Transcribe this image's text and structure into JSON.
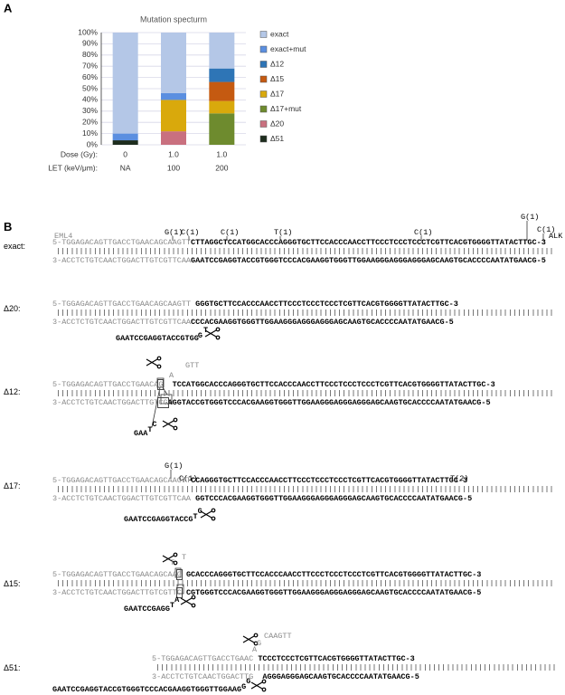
{
  "chart_data": {
    "type": "stacked_bar",
    "panel_label": "A",
    "title": "Mutation specturm",
    "categories": [
      "0",
      "1.0",
      "1.0"
    ],
    "category_label": "Dose (Gy):",
    "categories2": [
      "NA",
      "100",
      "200"
    ],
    "category2_label": "LET (keV/μm):",
    "series": [
      {
        "name": "exact",
        "color": "#b4c7e7",
        "values": [
          90,
          54,
          32
        ]
      },
      {
        "name": "exact+mut",
        "color": "#5b8fe0",
        "values": [
          6,
          6,
          0
        ]
      },
      {
        "name": "Δ12",
        "color": "#2e75b6",
        "values": [
          0,
          0,
          12
        ]
      },
      {
        "name": "Δ15",
        "color": "#c55a11",
        "values": [
          0,
          0,
          17
        ]
      },
      {
        "name": "Δ17",
        "color": "#d9a90c",
        "values": [
          0,
          28,
          11
        ]
      },
      {
        "name": "Δ17+mut",
        "color": "#6e8b2e",
        "values": [
          0,
          0,
          28
        ]
      },
      {
        "name": "Δ20",
        "color": "#c9707f",
        "values": [
          0,
          12,
          0
        ]
      },
      {
        "name": "Δ51",
        "color": "#1e2d1e",
        "values": [
          4,
          0,
          0
        ]
      }
    ],
    "ylim": [
      0,
      100
    ],
    "yticks": [
      {
        "value": 0,
        "label": "0%"
      },
      {
        "value": 10,
        "label": "10%"
      },
      {
        "value": 20,
        "label": "20%"
      },
      {
        "value": 30,
        "label": "30%"
      },
      {
        "value": 40,
        "label": "40%"
      },
      {
        "value": 50,
        "label": "50%"
      },
      {
        "value": 60,
        "label": "60%"
      },
      {
        "value": 70,
        "label": "70%"
      },
      {
        "value": 80,
        "label": "80%"
      },
      {
        "value": 90,
        "label": "90%"
      },
      {
        "value": 100,
        "label": "100%"
      }
    ],
    "grid": true,
    "legend": "right",
    "stacked": true
  },
  "panel_b": {
    "label": "B",
    "gene_left": "EML4",
    "gene_right": "ALK",
    "blocks": [
      {
        "label": "exact:",
        "top": [
          "5-TGGAGACAGTTGACCTGAACAGCAAGTT",
          "CTTAGGCTCCATGGCACCCAGGGTGCTTCCACCCAACCTTCCCTCCCTCCCTCGTTCACGTGGGGTTATACTTGC-3"
        ],
        "bottom": [
          "3-ACCTCTGTCAACTGGACTTGTCGTTCAA",
          "GAATCCGAGGTACCGTGGGTCCCACGAAGGTGGGTTGGAAGGGAGGGAGGGAGCAAGTGCACCCCAATATGAACG-5"
        ],
        "mutations": [
          "G(1)",
          "C(1)",
          "C(1)",
          "T(1)",
          "C(1)",
          "G(1)",
          "C(1)"
        ]
      },
      {
        "label": "Δ20:",
        "top": [
          "5-TGGAGACAGTTGACCTGAACAGCAAGTT",
          "GGGTGCTTCCACCCAACCTTCCCTCCCTCCCTCGTTCACGTGGGGTTATACTTGC-3"
        ],
        "bottom": [
          "3-ACCTCTGTCAACTGGACTTGTCGTTCAA",
          "CCCACGAAGGTGGGTTGGAAGGGAGGGAGGGAGCAAGTGCACCCCAATATGAACG-5"
        ],
        "flap": [
          "GAATCCGAGGTACCGTGG",
          "G",
          "T"
        ]
      },
      {
        "label": "Δ12:",
        "top": [
          "5-TGGAGACAGTTGACCTGAACA",
          "G",
          "TCCATGGCACCCAGGGTGCTTCCACCCAACCTTCCCTCCCTCCCTCGTTCACGTGGGGTTATACTTGC-3"
        ],
        "overhang": [
          "A",
          "GTT"
        ],
        "bottom": [
          "3-ACCTCTGTCAACTGGACTTGT",
          "CG",
          "AGGTACCGTGGGTCCCACGAAGGTGGGTTGGAAGGGAGGGAGGGAGCAAGTGCACCCCAATATGAACG-5"
        ],
        "flap": [
          "GAA",
          "T",
          "C"
        ]
      },
      {
        "label": "Δ17:",
        "top": [
          "5-TGGAGACAGTTGACCTGAACAGCAAGTT",
          "CCAGGGTGCTTCCACCCAACCTTCCCTCCCTCCCTCGTTCACGTGGGGTTATACTTGC-3"
        ],
        "bottom": [
          "3-ACCTCTGTCAACTGGACTTGTCGTTCAA",
          "GGTCCCACGAAGGTGGGTTGGAAGGGAGGGAGGGAGCAAGTGCACCCCAATATGAACG-5"
        ],
        "flap": [
          "GAATCCGAGGTACCG",
          "T",
          "G"
        ],
        "mutations": [
          "G(1)",
          "C(1)",
          "T(2)"
        ]
      },
      {
        "label": "Δ15:",
        "top": [
          "5-TGGAGACAGTTGACCTGAACAGCAA",
          "G",
          "GCACCCAGGGTGCTTCCACCCAACCTTCCCTCCCTCCCTCGTTCACGTGGGGTTATACTTGC-3"
        ],
        "overhang": [
          "T",
          "T"
        ],
        "bottom": [
          "3-ACCTCTGTCAACTGGACTTGTCGTT",
          "C",
          "CGTGGGTCCCACGAAGGTGGGTTGGAAGGGAGGGAGGGAGCAAGTGCACCCCAATATGAACG-5"
        ],
        "flap": [
          "GAATCCGAGG",
          "T",
          "A"
        ]
      },
      {
        "label": "Δ51:",
        "top": [
          "5-TGGAGACAGTTGACCTGAAC",
          "TCCCTCCCTCGTTCACGTGGGGTTATACTTGC-3"
        ],
        "overhang": [
          "A",
          "G",
          "CAAGTT"
        ],
        "bottom": [
          "3-ACCTCTGTCAACTGGACTTG",
          "AGGGAGGGAGCAAGTGCACCCCAATATGAACG-5"
        ],
        "flap": [
          "GAATCCGAGGTACCGTGGGTCCCACGAAGGTGGGTTGGAAG",
          "G",
          "G"
        ]
      }
    ]
  }
}
